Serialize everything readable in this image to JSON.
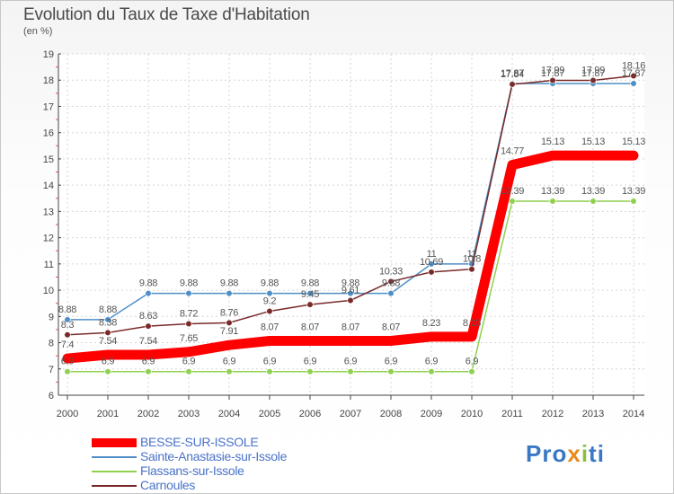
{
  "title": "Evolution du Taux de Taxe d'Habitation",
  "unit": "(en %)",
  "logo": {
    "text": "Proxiti",
    "colors": [
      "#3a78c6",
      "#e88a1e",
      "#8cbf3f"
    ]
  },
  "chart_data": {
    "type": "line",
    "categories": [
      "2000",
      "2001",
      "2002",
      "2003",
      "2004",
      "2005",
      "2006",
      "2007",
      "2008",
      "2009",
      "2010",
      "2011",
      "2012",
      "2013",
      "2014"
    ],
    "ylim": [
      6,
      19
    ],
    "yticks": [
      6,
      7,
      8,
      9,
      10,
      11,
      12,
      13,
      14,
      15,
      16,
      17,
      18,
      19
    ],
    "grid": true,
    "legend_position": "bottom-left",
    "series": [
      {
        "name": "BESSE-SUR-ISSOLE",
        "color": "#ff0000",
        "emphasis": true,
        "values": [
          7.4,
          7.54,
          7.54,
          7.65,
          7.91,
          8.07,
          8.07,
          8.07,
          8.07,
          8.23,
          8.23,
          14.77,
          15.13,
          15.13,
          15.13
        ],
        "labels": [
          "7.4",
          "7.54",
          "7.54",
          "7.65",
          "7.91",
          "8.07",
          "8.07",
          "8.07",
          "8.07",
          "8.23",
          "8.23",
          "14.77",
          "15.13",
          "15.13",
          "15.13"
        ]
      },
      {
        "name": "Sainte-Anastasie-sur-Issole",
        "color": "#4f8fc7",
        "values": [
          8.88,
          8.88,
          9.88,
          9.88,
          9.88,
          9.88,
          9.88,
          9.88,
          9.88,
          11,
          11,
          17.87,
          17.87,
          17.87,
          17.87
        ],
        "labels": [
          "8.88",
          "8.88",
          "9.88",
          "9.88",
          "9.88",
          "9.88",
          "9.88",
          "9.88",
          "9.88",
          "11",
          "11",
          "17.87",
          "17.87",
          "17.87",
          "17.87"
        ]
      },
      {
        "name": "Flassans-sur-Issole",
        "color": "#8fd14f",
        "values": [
          6.9,
          6.9,
          6.9,
          6.9,
          6.9,
          6.9,
          6.9,
          6.9,
          6.9,
          6.9,
          6.9,
          13.39,
          13.39,
          13.39,
          13.39
        ],
        "labels": [
          "6.9",
          "6.9",
          "6.9",
          "6.9",
          "6.9",
          "6.9",
          "6.9",
          "6.9",
          "6.9",
          "6.9",
          "6.9",
          "13.39",
          "13.39",
          "13.39",
          "13.39"
        ]
      },
      {
        "name": "Carnoules",
        "color": "#7a2a2a",
        "values": [
          8.3,
          8.38,
          8.63,
          8.72,
          8.76,
          9.2,
          9.45,
          9.61,
          10.33,
          10.69,
          10.8,
          17.84,
          17.99,
          17.99,
          18.16
        ],
        "labels": [
          "8.3",
          "8.38",
          "8.63",
          "8.72",
          "8.76",
          "9.2",
          "9.45",
          "9.61",
          "10.33",
          "10.69",
          "10.8",
          "17.84",
          "17.99",
          "17.99",
          "18.16"
        ]
      }
    ]
  }
}
